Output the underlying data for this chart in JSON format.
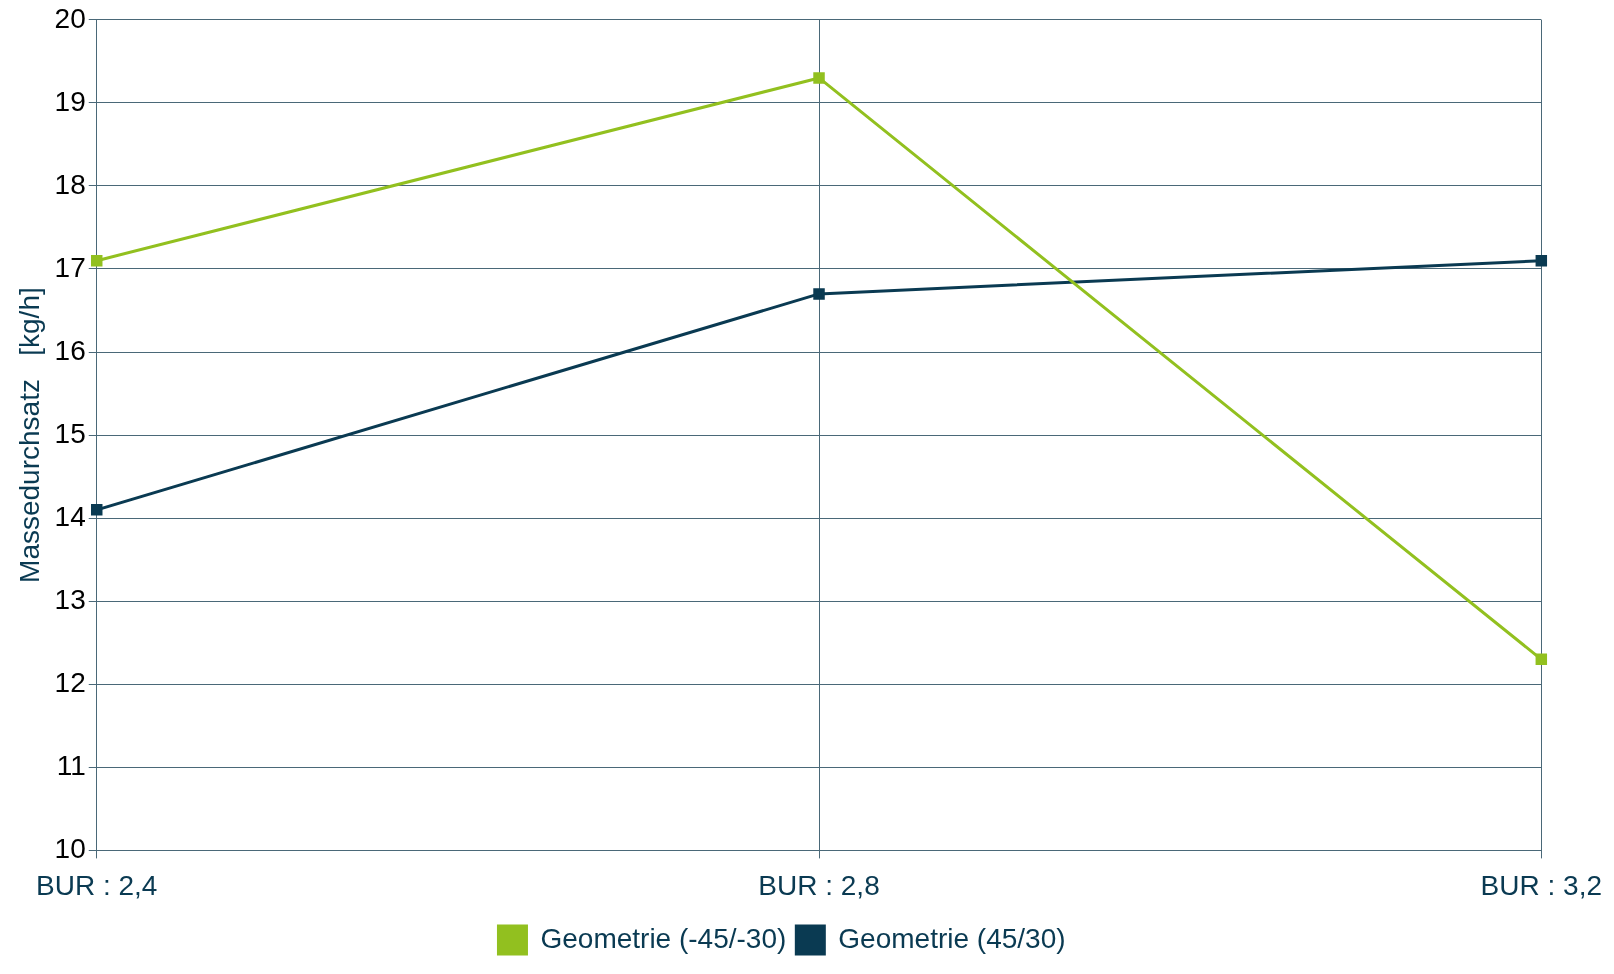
{
  "chart_data": {
    "type": "line",
    "ylabel": "Massedurchsatz   [kg/h]",
    "categories": [
      "BUR : 2,4",
      "BUR : 2,8",
      "BUR : 3,2"
    ],
    "series": [
      {
        "name": "Geometrie (-45/-30)",
        "color": "#92c01f",
        "values": [
          17.1,
          19.3,
          12.3
        ]
      },
      {
        "name": "Geometrie (45/30)",
        "color": "#0a3a52",
        "values": [
          14.1,
          16.7,
          17.1
        ]
      }
    ],
    "ylim": [
      10,
      20
    ],
    "yticks": [
      10,
      11,
      12,
      13,
      14,
      15,
      16,
      17,
      18,
      19,
      20
    ],
    "grid": true,
    "legend": "bottom",
    "marker": "square",
    "line_style": "solid"
  }
}
